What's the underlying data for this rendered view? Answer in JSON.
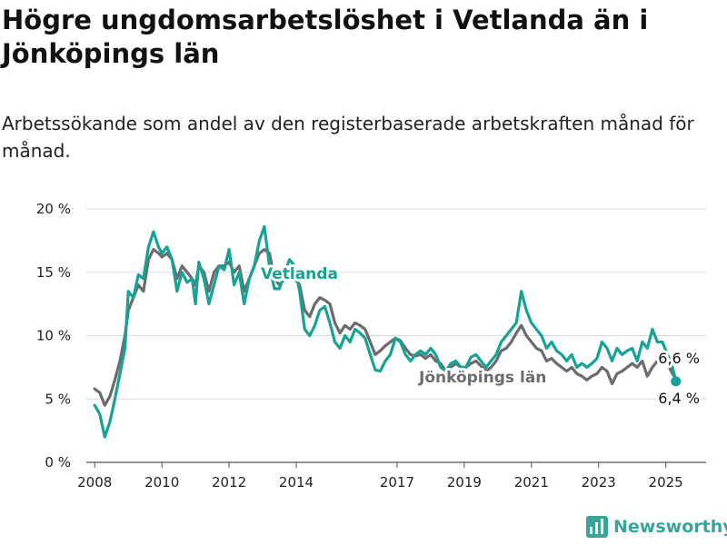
{
  "title": "Högre ungdomsarbetslöshet i Vetlanda än i Jönköpings län",
  "subtitle": "Arbetssökande som andel av den registerbaserade arbetskraften månad för månad.",
  "brand": {
    "name": "Newsworthy",
    "icon": "newsworthy-bar-chart-icon",
    "color": "#3aa39a"
  },
  "chart_data": {
    "type": "line",
    "title": "Högre ungdomsarbetslöshet i Vetlanda än i Jönköpings län",
    "subtitle": "Arbetssökande som andel av den registerbaserade arbetskraften månad för månad.",
    "xlabel": "",
    "ylabel": "",
    "xlim": [
      2007.75,
      2026.2
    ],
    "ylim": [
      0,
      20
    ],
    "grid": true,
    "legend": "inline-labels",
    "x_ticks": [
      2008,
      2010,
      2012,
      2014,
      2017,
      2019,
      2021,
      2023,
      2025
    ],
    "x_tick_labels": [
      "2008",
      "2010",
      "2012",
      "2014",
      "2017",
      "2019",
      "2021",
      "2023",
      "2025"
    ],
    "y_ticks": [
      0,
      5,
      10,
      15,
      20
    ],
    "y_tick_labels": [
      "0 %",
      "5 %",
      "10 %",
      "15 %",
      "20 %"
    ],
    "series": [
      {
        "name": "Vetlanda",
        "color": "#16a394",
        "end_label": "6,4 %",
        "points": [
          [
            2008.0,
            4.5
          ],
          [
            2008.15,
            3.8
          ],
          [
            2008.3,
            2.0
          ],
          [
            2008.45,
            3.2
          ],
          [
            2008.6,
            5.0
          ],
          [
            2008.75,
            7.0
          ],
          [
            2008.9,
            9.0
          ],
          [
            2009.0,
            13.5
          ],
          [
            2009.15,
            13.0
          ],
          [
            2009.3,
            14.8
          ],
          [
            2009.45,
            14.5
          ],
          [
            2009.6,
            17.0
          ],
          [
            2009.75,
            18.2
          ],
          [
            2009.9,
            17.0
          ],
          [
            2010.0,
            16.5
          ],
          [
            2010.15,
            17.0
          ],
          [
            2010.3,
            16.0
          ],
          [
            2010.45,
            13.5
          ],
          [
            2010.6,
            15.0
          ],
          [
            2010.75,
            14.2
          ],
          [
            2010.9,
            14.5
          ],
          [
            2011.0,
            12.5
          ],
          [
            2011.1,
            15.8
          ],
          [
            2011.25,
            14.5
          ],
          [
            2011.4,
            12.5
          ],
          [
            2011.55,
            14.0
          ],
          [
            2011.7,
            15.5
          ],
          [
            2011.85,
            15.2
          ],
          [
            2012.0,
            16.8
          ],
          [
            2012.15,
            14.0
          ],
          [
            2012.3,
            15.0
          ],
          [
            2012.45,
            12.5
          ],
          [
            2012.6,
            14.5
          ],
          [
            2012.75,
            15.5
          ],
          [
            2012.9,
            17.5
          ],
          [
            2013.05,
            18.6
          ],
          [
            2013.2,
            15.5
          ],
          [
            2013.35,
            13.7
          ],
          [
            2013.5,
            13.7
          ],
          [
            2013.65,
            15.0
          ],
          [
            2013.8,
            16.0
          ],
          [
            2013.95,
            15.5
          ],
          [
            2014.1,
            13.5
          ],
          [
            2014.25,
            10.5
          ],
          [
            2014.4,
            10.0
          ],
          [
            2014.55,
            10.8
          ],
          [
            2014.7,
            12.0
          ],
          [
            2014.85,
            12.3
          ],
          [
            2015.0,
            11.0
          ],
          [
            2015.15,
            9.5
          ],
          [
            2015.3,
            9.0
          ],
          [
            2015.45,
            10.0
          ],
          [
            2015.6,
            9.5
          ],
          [
            2015.75,
            10.5
          ],
          [
            2015.9,
            10.2
          ],
          [
            2016.05,
            9.8
          ],
          [
            2016.2,
            8.5
          ],
          [
            2016.35,
            7.3
          ],
          [
            2016.5,
            7.2
          ],
          [
            2016.65,
            8.0
          ],
          [
            2016.8,
            8.5
          ],
          [
            2016.95,
            9.8
          ],
          [
            2017.1,
            9.5
          ],
          [
            2017.25,
            8.5
          ],
          [
            2017.4,
            8.0
          ],
          [
            2017.55,
            8.5
          ],
          [
            2017.7,
            8.8
          ],
          [
            2017.85,
            8.5
          ],
          [
            2018.0,
            9.0
          ],
          [
            2018.15,
            8.5
          ],
          [
            2018.3,
            7.5
          ],
          [
            2018.45,
            7.2
          ],
          [
            2018.6,
            7.8
          ],
          [
            2018.75,
            8.0
          ],
          [
            2018.9,
            7.5
          ],
          [
            2019.05,
            7.5
          ],
          [
            2019.2,
            8.3
          ],
          [
            2019.35,
            8.5
          ],
          [
            2019.5,
            8.0
          ],
          [
            2019.65,
            7.5
          ],
          [
            2019.8,
            8.0
          ],
          [
            2019.95,
            8.5
          ],
          [
            2020.1,
            9.5
          ],
          [
            2020.25,
            10.0
          ],
          [
            2020.4,
            10.5
          ],
          [
            2020.55,
            11.0
          ],
          [
            2020.7,
            13.5
          ],
          [
            2020.85,
            12.0
          ],
          [
            2021.0,
            11.0
          ],
          [
            2021.15,
            10.5
          ],
          [
            2021.3,
            10.0
          ],
          [
            2021.45,
            9.0
          ],
          [
            2021.6,
            9.5
          ],
          [
            2021.75,
            8.8
          ],
          [
            2021.9,
            8.5
          ],
          [
            2022.05,
            8.0
          ],
          [
            2022.2,
            8.5
          ],
          [
            2022.35,
            7.5
          ],
          [
            2022.5,
            7.8
          ],
          [
            2022.65,
            7.5
          ],
          [
            2022.8,
            7.8
          ],
          [
            2022.95,
            8.2
          ],
          [
            2023.1,
            9.5
          ],
          [
            2023.25,
            9.0
          ],
          [
            2023.4,
            8.0
          ],
          [
            2023.55,
            9.0
          ],
          [
            2023.7,
            8.5
          ],
          [
            2023.85,
            8.8
          ],
          [
            2024.0,
            9.0
          ],
          [
            2024.15,
            8.0
          ],
          [
            2024.3,
            9.5
          ],
          [
            2024.45,
            9.0
          ],
          [
            2024.6,
            10.5
          ],
          [
            2024.75,
            9.5
          ],
          [
            2024.9,
            9.5
          ],
          [
            2025.05,
            8.5
          ],
          [
            2025.2,
            7.5
          ],
          [
            2025.3,
            6.4
          ]
        ]
      },
      {
        "name": "Jönköpings län",
        "color": "#6b6b70",
        "end_label": "6,6 %",
        "points": [
          [
            2008.0,
            5.8
          ],
          [
            2008.15,
            5.5
          ],
          [
            2008.3,
            4.5
          ],
          [
            2008.45,
            5.2
          ],
          [
            2008.6,
            6.5
          ],
          [
            2008.75,
            8.0
          ],
          [
            2008.9,
            10.0
          ],
          [
            2009.0,
            12.0
          ],
          [
            2009.15,
            13.0
          ],
          [
            2009.3,
            14.0
          ],
          [
            2009.45,
            13.5
          ],
          [
            2009.6,
            16.0
          ],
          [
            2009.75,
            16.8
          ],
          [
            2009.9,
            16.5
          ],
          [
            2010.0,
            16.2
          ],
          [
            2010.15,
            16.5
          ],
          [
            2010.3,
            16.0
          ],
          [
            2010.45,
            14.5
          ],
          [
            2010.6,
            15.5
          ],
          [
            2010.75,
            15.0
          ],
          [
            2010.9,
            14.5
          ],
          [
            2011.0,
            14.0
          ],
          [
            2011.1,
            15.5
          ],
          [
            2011.25,
            15.0
          ],
          [
            2011.4,
            13.5
          ],
          [
            2011.55,
            15.0
          ],
          [
            2011.7,
            15.5
          ],
          [
            2011.85,
            15.5
          ],
          [
            2012.0,
            15.8
          ],
          [
            2012.15,
            15.0
          ],
          [
            2012.3,
            15.5
          ],
          [
            2012.45,
            13.5
          ],
          [
            2012.6,
            14.5
          ],
          [
            2012.75,
            15.5
          ],
          [
            2012.9,
            16.5
          ],
          [
            2013.05,
            16.8
          ],
          [
            2013.2,
            16.5
          ],
          [
            2013.35,
            14.5
          ],
          [
            2013.5,
            14.0
          ],
          [
            2013.65,
            14.5
          ],
          [
            2013.8,
            15.2
          ],
          [
            2013.95,
            14.5
          ],
          [
            2014.1,
            14.0
          ],
          [
            2014.25,
            12.0
          ],
          [
            2014.4,
            11.5
          ],
          [
            2014.55,
            12.5
          ],
          [
            2014.7,
            13.0
          ],
          [
            2014.85,
            12.8
          ],
          [
            2015.0,
            12.5
          ],
          [
            2015.15,
            11.0
          ],
          [
            2015.3,
            10.2
          ],
          [
            2015.45,
            10.8
          ],
          [
            2015.6,
            10.5
          ],
          [
            2015.75,
            11.0
          ],
          [
            2015.9,
            10.8
          ],
          [
            2016.05,
            10.5
          ],
          [
            2016.2,
            9.5
          ],
          [
            2016.35,
            8.5
          ],
          [
            2016.5,
            8.8
          ],
          [
            2016.65,
            9.2
          ],
          [
            2016.8,
            9.5
          ],
          [
            2016.95,
            9.8
          ],
          [
            2017.1,
            9.6
          ],
          [
            2017.25,
            9.0
          ],
          [
            2017.4,
            8.5
          ],
          [
            2017.55,
            8.4
          ],
          [
            2017.7,
            8.5
          ],
          [
            2017.85,
            8.2
          ],
          [
            2018.0,
            8.5
          ],
          [
            2018.15,
            8.0
          ],
          [
            2018.3,
            7.8
          ],
          [
            2018.45,
            7.2
          ],
          [
            2018.6,
            7.5
          ],
          [
            2018.75,
            7.8
          ],
          [
            2018.9,
            7.5
          ],
          [
            2019.05,
            7.5
          ],
          [
            2019.2,
            7.8
          ],
          [
            2019.35,
            8.0
          ],
          [
            2019.5,
            7.6
          ],
          [
            2019.65,
            7.2
          ],
          [
            2019.8,
            7.5
          ],
          [
            2019.95,
            8.0
          ],
          [
            2020.1,
            8.8
          ],
          [
            2020.25,
            9.0
          ],
          [
            2020.4,
            9.5
          ],
          [
            2020.55,
            10.2
          ],
          [
            2020.7,
            10.8
          ],
          [
            2020.85,
            10.0
          ],
          [
            2021.0,
            9.5
          ],
          [
            2021.15,
            9.0
          ],
          [
            2021.3,
            8.8
          ],
          [
            2021.45,
            8.0
          ],
          [
            2021.6,
            8.2
          ],
          [
            2021.75,
            7.8
          ],
          [
            2021.9,
            7.5
          ],
          [
            2022.05,
            7.2
          ],
          [
            2022.2,
            7.5
          ],
          [
            2022.35,
            7.0
          ],
          [
            2022.5,
            6.8
          ],
          [
            2022.65,
            6.5
          ],
          [
            2022.8,
            6.8
          ],
          [
            2022.95,
            7.0
          ],
          [
            2023.1,
            7.5
          ],
          [
            2023.25,
            7.2
          ],
          [
            2023.4,
            6.2
          ],
          [
            2023.55,
            7.0
          ],
          [
            2023.7,
            7.2
          ],
          [
            2023.85,
            7.5
          ],
          [
            2024.0,
            7.8
          ],
          [
            2024.15,
            7.5
          ],
          [
            2024.3,
            8.0
          ],
          [
            2024.45,
            6.8
          ],
          [
            2024.6,
            7.5
          ],
          [
            2024.75,
            8.0
          ],
          [
            2024.9,
            8.2
          ],
          [
            2025.05,
            7.8
          ],
          [
            2025.2,
            7.0
          ],
          [
            2025.3,
            6.6
          ]
        ]
      }
    ]
  }
}
